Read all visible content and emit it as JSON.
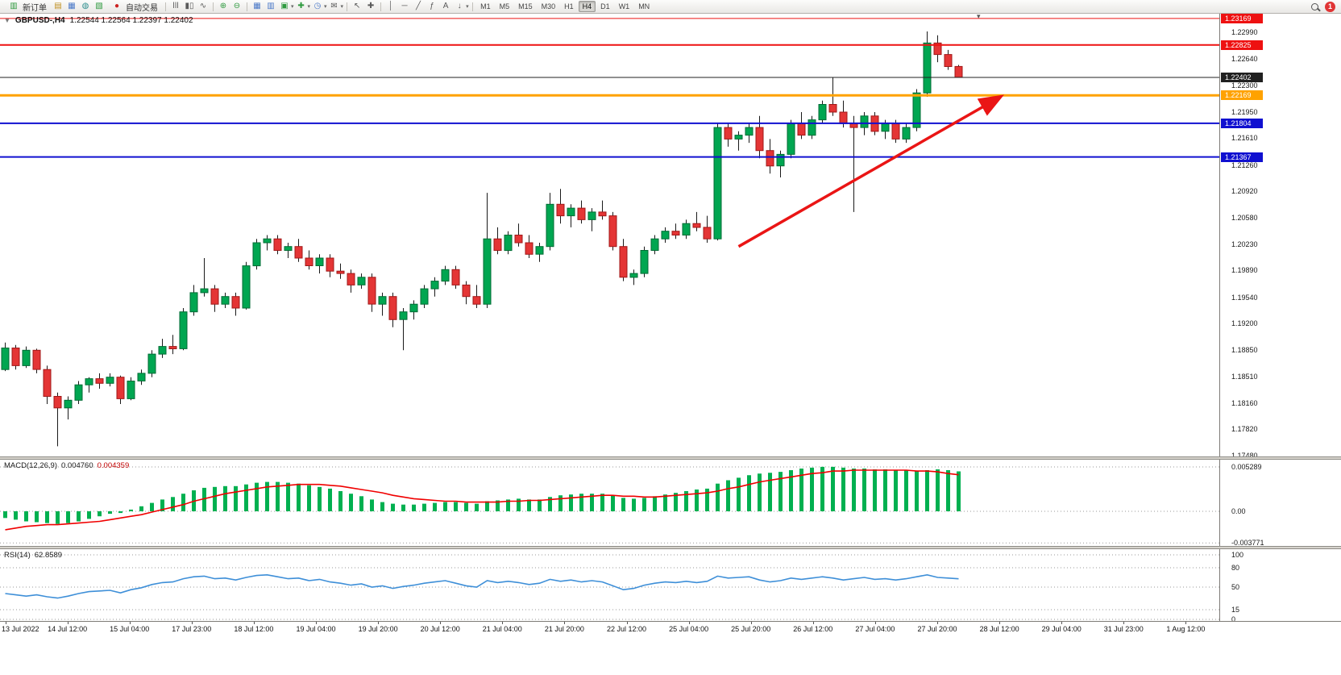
{
  "toolbar": {
    "new_order_label": "新订单",
    "autotrading_label": "自动交易",
    "timeframes": [
      "M1",
      "M5",
      "M15",
      "M30",
      "H1",
      "H4",
      "D1",
      "W1",
      "MN"
    ],
    "active_timeframe": "H4",
    "notification_badge": "1"
  },
  "icons": {
    "new_order": "▥",
    "market_watch": "▤",
    "navigator": "▦",
    "data_window": "◍",
    "terminal": "▧",
    "autotrading_dot": "●",
    "bars_chart": "ǀǀǀ",
    "candle_chart": "▮▯",
    "line_chart": "∿",
    "zoom_in": "⊕",
    "zoom_out": "⊖",
    "tile_windows": "▦",
    "cascade_windows": "▥",
    "new_chart": "▣",
    "indicators_add": "✚",
    "period_clock": "◷",
    "news": "✉",
    "cursor": "↖",
    "crosshair": "✚",
    "vertical_line": "│",
    "horizontal_line": "─",
    "trendline": "╱",
    "fibonacci": "ƒ",
    "text_label": "A",
    "arrows": "↓",
    "dropdown": "▾",
    "collapse": "▼",
    "shift_marker": "▾"
  },
  "chart": {
    "title": "GBPUSD-,H4",
    "ohlc_text": "1.22544 1.22564 1.22397 1.22402"
  },
  "chart_data": [
    {
      "type": "candlestick",
      "symbol": "GBPUSD-",
      "timeframe": "H4",
      "current_bar": {
        "open": 1.22544,
        "high": 1.22564,
        "low": 1.22397,
        "close": 1.22402
      },
      "y_range": [
        1.17468,
        1.23231
      ],
      "grid": false,
      "colors": {
        "up": "#00A651",
        "up_border": "#006B34",
        "down": "#E43535",
        "down_border": "#A01818",
        "wick": "#1a1a1a"
      },
      "y_axis_ticks": [
        "1.22990",
        "1.22640",
        "1.22300",
        "1.21950",
        "1.21610",
        "1.21260",
        "1.20920",
        "1.20580",
        "1.20230",
        "1.19890",
        "1.19540",
        "1.19200",
        "1.18850",
        "1.18510",
        "1.18160",
        "1.17820",
        "1.17480"
      ],
      "price_lines": [
        {
          "price": 1.23169,
          "label": "1.23169",
          "color": "#EE1111",
          "width": 1
        },
        {
          "price": 1.22825,
          "label": "1.22825",
          "color": "#EE1111",
          "width": 2
        },
        {
          "price": 1.22402,
          "label": "1.22402",
          "color": "#202020",
          "width": 1
        },
        {
          "price": 1.22169,
          "label": "1.22169",
          "color": "#FFA200",
          "width": 3
        },
        {
          "price": 1.21804,
          "label": "1.21804",
          "color": "#1010D0",
          "width": 2
        },
        {
          "price": 1.21367,
          "label": "1.21367",
          "color": "#1010D0",
          "width": 2
        }
      ],
      "trend_arrow": {
        "from_bar": 70,
        "from_price": 1.202,
        "to_bar": 95,
        "to_price": 1.2215,
        "color": "#EA1515"
      },
      "x_labels": [
        "13 Jul 2022",
        "14 Jul 12:00",
        "15 Jul 04:00",
        "17 Jul 23:00",
        "18 Jul 12:00",
        "19 Jul 04:00",
        "19 Jul 20:00",
        "20 Jul 12:00",
        "21 Jul 04:00",
        "21 Jul 20:00",
        "22 Jul 12:00",
        "25 Jul 04:00",
        "25 Jul 20:00",
        "26 Jul 12:00",
        "27 Jul 04:00",
        "27 Jul 20:00",
        "28 Jul 12:00",
        "29 Jul 04:00",
        "31 Jul 23:00",
        "1 Aug 12:00"
      ],
      "candles": [
        [
          1.186,
          1.1895,
          1.1858,
          1.1888
        ],
        [
          1.1888,
          1.1892,
          1.186,
          1.1865
        ],
        [
          1.1865,
          1.189,
          1.1862,
          1.1885
        ],
        [
          1.1885,
          1.1887,
          1.1855,
          1.186
        ],
        [
          1.186,
          1.1865,
          1.1815,
          1.1825
        ],
        [
          1.1825,
          1.183,
          1.176,
          1.181
        ],
        [
          1.181,
          1.1825,
          1.1795,
          1.182
        ],
        [
          1.182,
          1.1845,
          1.1815,
          1.184
        ],
        [
          1.184,
          1.185,
          1.183,
          1.1848
        ],
        [
          1.1848,
          1.1855,
          1.1835,
          1.1842
        ],
        [
          1.1842,
          1.1855,
          1.1838,
          1.185
        ],
        [
          1.185,
          1.1852,
          1.1815,
          1.1822
        ],
        [
          1.1822,
          1.185,
          1.182,
          1.1845
        ],
        [
          1.1845,
          1.186,
          1.184,
          1.1855
        ],
        [
          1.1855,
          1.1885,
          1.185,
          1.188
        ],
        [
          1.188,
          1.19,
          1.1875,
          1.189
        ],
        [
          1.189,
          1.1905,
          1.188,
          1.1887
        ],
        [
          1.1887,
          1.194,
          1.1885,
          1.1935
        ],
        [
          1.1935,
          1.197,
          1.193,
          1.196
        ],
        [
          1.196,
          1.2005,
          1.1955,
          1.1965
        ],
        [
          1.1965,
          1.197,
          1.1935,
          1.1945
        ],
        [
          1.1945,
          1.196,
          1.194,
          1.1955
        ],
        [
          1.1955,
          1.196,
          1.193,
          1.194
        ],
        [
          1.194,
          1.2,
          1.1938,
          1.1995
        ],
        [
          1.1995,
          1.203,
          1.199,
          1.2025
        ],
        [
          1.2025,
          1.2035,
          1.2015,
          1.203
        ],
        [
          1.203,
          1.2035,
          1.201,
          1.2015
        ],
        [
          1.2015,
          1.2025,
          1.2005,
          1.202
        ],
        [
          1.202,
          1.203,
          1.2,
          1.2005
        ],
        [
          1.2005,
          1.2015,
          1.199,
          1.1995
        ],
        [
          1.1995,
          1.201,
          1.1985,
          1.2005
        ],
        [
          1.2005,
          1.201,
          1.198,
          1.1988
        ],
        [
          1.1988,
          1.1998,
          1.1978,
          1.1985
        ],
        [
          1.1985,
          1.199,
          1.196,
          1.197
        ],
        [
          1.197,
          1.1985,
          1.1965,
          1.198
        ],
        [
          1.198,
          1.1985,
          1.1935,
          1.1945
        ],
        [
          1.1945,
          1.196,
          1.193,
          1.1955
        ],
        [
          1.1955,
          1.196,
          1.1915,
          1.1925
        ],
        [
          1.1925,
          1.194,
          1.1885,
          1.1935
        ],
        [
          1.1935,
          1.195,
          1.1925,
          1.1945
        ],
        [
          1.1945,
          1.197,
          1.194,
          1.1965
        ],
        [
          1.1965,
          1.198,
          1.1955,
          1.1975
        ],
        [
          1.1975,
          1.1995,
          1.197,
          1.199
        ],
        [
          1.199,
          1.1995,
          1.1965,
          1.197
        ],
        [
          1.197,
          1.1975,
          1.1945,
          1.1955
        ],
        [
          1.1955,
          1.197,
          1.194,
          1.1945
        ],
        [
          1.1945,
          1.209,
          1.194,
          1.203
        ],
        [
          1.203,
          1.2045,
          1.201,
          1.2015
        ],
        [
          1.2015,
          1.204,
          1.201,
          1.2035
        ],
        [
          1.2035,
          1.205,
          1.202,
          1.2025
        ],
        [
          1.2025,
          1.2035,
          1.2005,
          1.201
        ],
        [
          1.201,
          1.2025,
          1.2,
          1.202
        ],
        [
          1.202,
          1.209,
          1.2015,
          1.2075
        ],
        [
          1.2075,
          1.2095,
          1.205,
          1.206
        ],
        [
          1.206,
          1.2075,
          1.2045,
          1.207
        ],
        [
          1.207,
          1.208,
          1.205,
          1.2055
        ],
        [
          1.2055,
          1.207,
          1.204,
          1.2065
        ],
        [
          1.2065,
          1.208,
          1.2055,
          1.206
        ],
        [
          1.206,
          1.2065,
          1.2015,
          1.202
        ],
        [
          1.202,
          1.203,
          1.1975,
          1.198
        ],
        [
          1.198,
          1.199,
          1.197,
          1.1985
        ],
        [
          1.1985,
          1.202,
          1.198,
          1.2015
        ],
        [
          1.2015,
          1.2035,
          1.201,
          1.203
        ],
        [
          1.203,
          1.2045,
          1.2025,
          1.204
        ],
        [
          1.204,
          1.205,
          1.203,
          1.2035
        ],
        [
          1.2035,
          1.2055,
          1.203,
          1.205
        ],
        [
          1.205,
          1.2065,
          1.204,
          1.2045
        ],
        [
          1.2045,
          1.206,
          1.2025,
          1.203
        ],
        [
          1.203,
          1.218,
          1.2028,
          1.2175
        ],
        [
          1.2175,
          1.218,
          1.215,
          1.216
        ],
        [
          1.216,
          1.217,
          1.2145,
          1.2165
        ],
        [
          1.2165,
          1.218,
          1.2155,
          1.2175
        ],
        [
          1.2175,
          1.219,
          1.2135,
          1.2145
        ],
        [
          1.2145,
          1.216,
          1.2115,
          1.2125
        ],
        [
          1.2125,
          1.2145,
          1.211,
          1.214
        ],
        [
          1.214,
          1.2185,
          1.2135,
          1.218
        ],
        [
          1.218,
          1.2195,
          1.216,
          1.2165
        ],
        [
          1.2165,
          1.219,
          1.216,
          1.2185
        ],
        [
          1.2185,
          1.221,
          1.218,
          1.2205
        ],
        [
          1.2205,
          1.224,
          1.219,
          1.2195
        ],
        [
          1.2195,
          1.221,
          1.2175,
          1.218
        ],
        [
          1.218,
          1.219,
          1.2065,
          1.2175
        ],
        [
          1.2175,
          1.2195,
          1.2165,
          1.219
        ],
        [
          1.219,
          1.2195,
          1.2165,
          1.217
        ],
        [
          1.217,
          1.2185,
          1.216,
          1.218
        ],
        [
          1.218,
          1.2185,
          1.2155,
          1.216
        ],
        [
          1.216,
          1.218,
          1.2155,
          1.2175
        ],
        [
          1.2175,
          1.2225,
          1.217,
          1.222
        ],
        [
          1.222,
          1.23,
          1.2215,
          1.2285
        ],
        [
          1.2285,
          1.2295,
          1.226,
          1.227
        ],
        [
          1.227,
          1.2276,
          1.225,
          1.22544
        ],
        [
          1.22544,
          1.22564,
          1.22397,
          1.22402
        ]
      ]
    },
    {
      "type": "bar",
      "name": "MACD",
      "label": "MACD(12,26,9)",
      "value_main": "0.004760",
      "value_signal": "0.004359",
      "y_range": [
        -0.004135,
        0.006154
      ],
      "y_axis_ticks": [
        "0.005289",
        "0.00",
        "-0.003771"
      ],
      "colors": {
        "histogram": "#00B050",
        "signal": "#F00000"
      },
      "histogram": [
        -0.0008,
        -0.001,
        -0.0012,
        -0.0013,
        -0.0014,
        -0.0015,
        -0.0014,
        -0.0012,
        -0.0009,
        -0.0006,
        -0.0003,
        -0.0002,
        0.0002,
        0.0006,
        0.001,
        0.0014,
        0.0017,
        0.0021,
        0.0025,
        0.0028,
        0.0029,
        0.003,
        0.003,
        0.0032,
        0.0034,
        0.0035,
        0.0035,
        0.0034,
        0.0033,
        0.0031,
        0.0029,
        0.0027,
        0.0024,
        0.0021,
        0.0018,
        0.0014,
        0.0011,
        0.0009,
        0.0008,
        0.0008,
        0.0009,
        0.001,
        0.0011,
        0.0011,
        0.001,
        0.0009,
        0.0012,
        0.0013,
        0.0014,
        0.0015,
        0.0014,
        0.0014,
        0.0017,
        0.0019,
        0.002,
        0.0021,
        0.0021,
        0.0021,
        0.0019,
        0.0016,
        0.0015,
        0.0016,
        0.0018,
        0.002,
        0.0022,
        0.0024,
        0.0026,
        0.0027,
        0.0033,
        0.0037,
        0.004,
        0.0043,
        0.0045,
        0.0046,
        0.0047,
        0.0049,
        0.0051,
        0.0052,
        0.0053,
        0.0053,
        0.0052,
        0.0051,
        0.0051,
        0.005,
        0.005,
        0.0049,
        0.0049,
        0.0048,
        0.0049,
        0.005,
        0.0049,
        0.00476
      ],
      "signal": [
        -0.0022,
        -0.002,
        -0.0018,
        -0.0017,
        -0.0016,
        -0.0016,
        -0.0015,
        -0.0014,
        -0.0013,
        -0.0012,
        -0.001,
        -0.0008,
        -0.0006,
        -0.0004,
        -0.0001,
        0.0002,
        0.0005,
        0.0008,
        0.0012,
        0.0015,
        0.0018,
        0.0021,
        0.0023,
        0.0025,
        0.0027,
        0.0029,
        0.003,
        0.0031,
        0.0032,
        0.0032,
        0.0032,
        0.0031,
        0.003,
        0.0028,
        0.0026,
        0.0024,
        0.0022,
        0.0019,
        0.0017,
        0.0015,
        0.0014,
        0.0013,
        0.0012,
        0.0012,
        0.0011,
        0.0011,
        0.0011,
        0.0011,
        0.0012,
        0.0012,
        0.0013,
        0.0013,
        0.0014,
        0.0015,
        0.0016,
        0.0017,
        0.0018,
        0.0019,
        0.0019,
        0.0018,
        0.0018,
        0.0017,
        0.0017,
        0.0018,
        0.0019,
        0.002,
        0.0021,
        0.0022,
        0.0024,
        0.0027,
        0.0029,
        0.0032,
        0.0035,
        0.0037,
        0.0039,
        0.0041,
        0.0043,
        0.0045,
        0.0046,
        0.0048,
        0.0048,
        0.0049,
        0.0049,
        0.0049,
        0.0049,
        0.0049,
        0.0049,
        0.0048,
        0.0048,
        0.0047,
        0.0045,
        0.004359
      ]
    },
    {
      "type": "line",
      "name": "RSI",
      "label": "RSI(14)",
      "value": "62.8589",
      "y_range": [
        -2.5,
        108.75
      ],
      "y_axis_ticks": [
        "100",
        "80",
        "50",
        "15",
        "0"
      ],
      "levels": [
        100,
        80,
        50,
        15,
        0
      ],
      "colors": {
        "line": "#3E8FD8"
      },
      "values": [
        40,
        38,
        36,
        38,
        35,
        33,
        36,
        40,
        43,
        44,
        45,
        41,
        46,
        49,
        54,
        57,
        58,
        63,
        66,
        67,
        63,
        64,
        61,
        65,
        68,
        69,
        66,
        63,
        64,
        60,
        62,
        58,
        56,
        53,
        55,
        50,
        52,
        48,
        51,
        53,
        56,
        58,
        60,
        56,
        52,
        50,
        60,
        57,
        59,
        57,
        54,
        56,
        62,
        59,
        61,
        58,
        60,
        58,
        52,
        46,
        48,
        53,
        56,
        58,
        57,
        59,
        57,
        59,
        67,
        64,
        65,
        66,
        61,
        58,
        60,
        64,
        62,
        64,
        66,
        64,
        61,
        63,
        65,
        62,
        63,
        61,
        63,
        66,
        69,
        65,
        64,
        62.86
      ]
    }
  ]
}
